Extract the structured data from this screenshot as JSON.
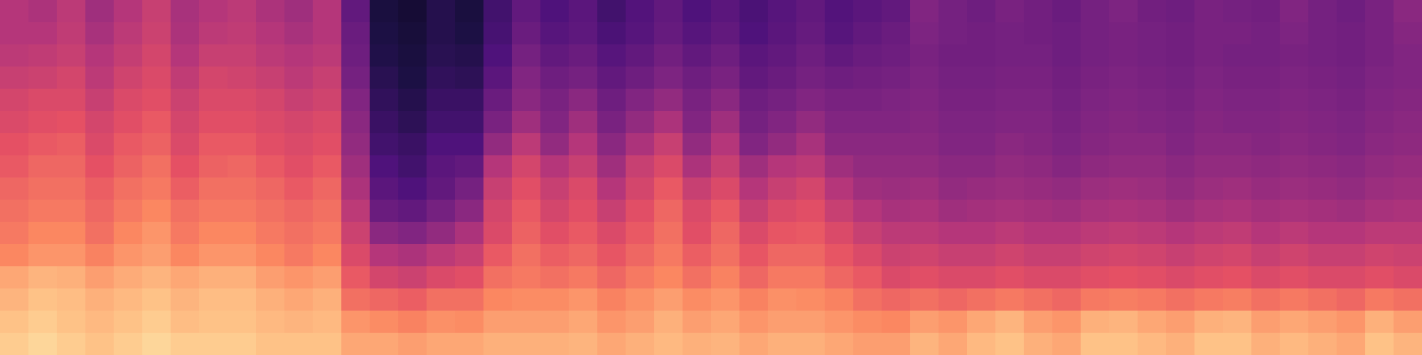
{
  "chart_data": {
    "type": "heatmap",
    "tick_labels": false,
    "color": "magma",
    "xlim": [
      0,
      50
    ],
    "ylim": [
      0,
      16
    ],
    "zlim": [
      0,
      1
    ],
    "cells": [
      [
        0.5,
        0.48,
        0.52,
        0.45,
        0.5,
        0.55,
        0.47,
        0.5,
        0.52,
        0.48,
        0.45,
        0.5,
        0.3,
        0.12,
        0.1,
        0.15,
        0.12,
        0.22,
        0.3,
        0.25,
        0.28,
        0.22,
        0.26,
        0.3,
        0.25,
        0.28,
        0.24,
        0.27,
        0.3,
        0.26,
        0.28,
        0.3,
        0.38,
        0.35,
        0.33,
        0.36,
        0.34,
        0.32,
        0.35,
        0.37,
        0.34,
        0.33,
        0.36,
        0.35,
        0.34,
        0.38,
        0.35,
        0.33,
        0.36,
        0.4
      ],
      [
        0.5,
        0.5,
        0.53,
        0.47,
        0.52,
        0.56,
        0.48,
        0.52,
        0.53,
        0.5,
        0.47,
        0.5,
        0.32,
        0.13,
        0.11,
        0.15,
        0.13,
        0.23,
        0.32,
        0.27,
        0.29,
        0.24,
        0.27,
        0.31,
        0.27,
        0.3,
        0.25,
        0.28,
        0.31,
        0.27,
        0.3,
        0.32,
        0.37,
        0.35,
        0.34,
        0.35,
        0.34,
        0.33,
        0.35,
        0.36,
        0.35,
        0.34,
        0.36,
        0.36,
        0.35,
        0.37,
        0.35,
        0.34,
        0.36,
        0.39
      ],
      [
        0.52,
        0.53,
        0.55,
        0.5,
        0.54,
        0.58,
        0.5,
        0.55,
        0.55,
        0.52,
        0.5,
        0.52,
        0.33,
        0.14,
        0.12,
        0.16,
        0.15,
        0.25,
        0.35,
        0.3,
        0.32,
        0.27,
        0.3,
        0.34,
        0.3,
        0.33,
        0.28,
        0.3,
        0.33,
        0.3,
        0.32,
        0.33,
        0.36,
        0.34,
        0.34,
        0.35,
        0.35,
        0.33,
        0.35,
        0.36,
        0.35,
        0.34,
        0.36,
        0.35,
        0.35,
        0.36,
        0.35,
        0.34,
        0.36,
        0.38
      ],
      [
        0.55,
        0.56,
        0.58,
        0.52,
        0.57,
        0.6,
        0.53,
        0.58,
        0.57,
        0.55,
        0.52,
        0.55,
        0.35,
        0.16,
        0.13,
        0.18,
        0.17,
        0.28,
        0.38,
        0.33,
        0.35,
        0.3,
        0.33,
        0.37,
        0.33,
        0.36,
        0.3,
        0.32,
        0.35,
        0.33,
        0.34,
        0.35,
        0.37,
        0.35,
        0.35,
        0.36,
        0.36,
        0.34,
        0.36,
        0.37,
        0.36,
        0.35,
        0.37,
        0.36,
        0.36,
        0.37,
        0.36,
        0.35,
        0.37,
        0.38
      ],
      [
        0.58,
        0.6,
        0.6,
        0.55,
        0.6,
        0.62,
        0.56,
        0.6,
        0.6,
        0.58,
        0.55,
        0.57,
        0.38,
        0.18,
        0.15,
        0.2,
        0.2,
        0.32,
        0.4,
        0.36,
        0.4,
        0.33,
        0.38,
        0.42,
        0.36,
        0.4,
        0.33,
        0.35,
        0.38,
        0.36,
        0.36,
        0.37,
        0.38,
        0.36,
        0.36,
        0.37,
        0.37,
        0.35,
        0.37,
        0.38,
        0.37,
        0.36,
        0.38,
        0.37,
        0.37,
        0.38,
        0.37,
        0.36,
        0.38,
        0.39
      ],
      [
        0.6,
        0.62,
        0.63,
        0.58,
        0.62,
        0.65,
        0.58,
        0.62,
        0.62,
        0.6,
        0.58,
        0.6,
        0.4,
        0.2,
        0.17,
        0.22,
        0.22,
        0.36,
        0.45,
        0.38,
        0.45,
        0.36,
        0.42,
        0.48,
        0.38,
        0.45,
        0.35,
        0.38,
        0.42,
        0.38,
        0.38,
        0.38,
        0.39,
        0.37,
        0.37,
        0.38,
        0.38,
        0.36,
        0.38,
        0.39,
        0.38,
        0.37,
        0.39,
        0.38,
        0.38,
        0.39,
        0.38,
        0.37,
        0.39,
        0.4
      ],
      [
        0.63,
        0.65,
        0.66,
        0.6,
        0.65,
        0.67,
        0.6,
        0.65,
        0.65,
        0.62,
        0.6,
        0.62,
        0.42,
        0.22,
        0.2,
        0.25,
        0.25,
        0.42,
        0.52,
        0.42,
        0.5,
        0.4,
        0.48,
        0.55,
        0.42,
        0.5,
        0.38,
        0.42,
        0.47,
        0.4,
        0.4,
        0.4,
        0.4,
        0.38,
        0.38,
        0.4,
        0.39,
        0.37,
        0.39,
        0.4,
        0.4,
        0.38,
        0.4,
        0.4,
        0.39,
        0.4,
        0.39,
        0.38,
        0.4,
        0.41
      ],
      [
        0.65,
        0.68,
        0.68,
        0.63,
        0.67,
        0.7,
        0.63,
        0.67,
        0.68,
        0.65,
        0.62,
        0.65,
        0.45,
        0.25,
        0.22,
        0.28,
        0.3,
        0.5,
        0.58,
        0.5,
        0.55,
        0.45,
        0.55,
        0.6,
        0.48,
        0.55,
        0.45,
        0.5,
        0.52,
        0.45,
        0.42,
        0.42,
        0.42,
        0.4,
        0.4,
        0.42,
        0.41,
        0.39,
        0.41,
        0.42,
        0.42,
        0.4,
        0.42,
        0.42,
        0.41,
        0.42,
        0.41,
        0.4,
        0.42,
        0.43
      ],
      [
        0.68,
        0.7,
        0.7,
        0.66,
        0.7,
        0.72,
        0.66,
        0.7,
        0.7,
        0.68,
        0.65,
        0.68,
        0.48,
        0.28,
        0.25,
        0.3,
        0.35,
        0.55,
        0.62,
        0.55,
        0.6,
        0.5,
        0.58,
        0.65,
        0.55,
        0.6,
        0.5,
        0.55,
        0.58,
        0.5,
        0.45,
        0.44,
        0.45,
        0.42,
        0.43,
        0.44,
        0.43,
        0.42,
        0.44,
        0.45,
        0.44,
        0.42,
        0.44,
        0.45,
        0.43,
        0.44,
        0.43,
        0.42,
        0.44,
        0.45
      ],
      [
        0.7,
        0.72,
        0.72,
        0.68,
        0.72,
        0.75,
        0.7,
        0.72,
        0.72,
        0.7,
        0.68,
        0.7,
        0.52,
        0.32,
        0.3,
        0.35,
        0.4,
        0.58,
        0.65,
        0.58,
        0.62,
        0.55,
        0.62,
        0.68,
        0.6,
        0.65,
        0.55,
        0.6,
        0.62,
        0.55,
        0.5,
        0.47,
        0.48,
        0.45,
        0.46,
        0.47,
        0.46,
        0.45,
        0.47,
        0.48,
        0.47,
        0.45,
        0.47,
        0.48,
        0.46,
        0.47,
        0.46,
        0.45,
        0.47,
        0.48
      ],
      [
        0.72,
        0.75,
        0.75,
        0.7,
        0.75,
        0.78,
        0.72,
        0.75,
        0.75,
        0.72,
        0.7,
        0.72,
        0.56,
        0.4,
        0.38,
        0.42,
        0.48,
        0.6,
        0.67,
        0.62,
        0.65,
        0.6,
        0.65,
        0.7,
        0.62,
        0.68,
        0.6,
        0.64,
        0.65,
        0.6,
        0.55,
        0.52,
        0.52,
        0.5,
        0.5,
        0.52,
        0.5,
        0.5,
        0.52,
        0.53,
        0.52,
        0.5,
        0.52,
        0.53,
        0.5,
        0.52,
        0.5,
        0.5,
        0.52,
        0.52
      ],
      [
        0.75,
        0.78,
        0.78,
        0.74,
        0.78,
        0.8,
        0.75,
        0.78,
        0.78,
        0.75,
        0.72,
        0.75,
        0.6,
        0.5,
        0.48,
        0.52,
        0.55,
        0.65,
        0.7,
        0.66,
        0.68,
        0.64,
        0.68,
        0.72,
        0.66,
        0.7,
        0.64,
        0.68,
        0.68,
        0.64,
        0.6,
        0.56,
        0.57,
        0.55,
        0.55,
        0.57,
        0.55,
        0.55,
        0.57,
        0.58,
        0.57,
        0.55,
        0.57,
        0.58,
        0.55,
        0.57,
        0.55,
        0.55,
        0.57,
        0.56
      ],
      [
        0.82,
        0.85,
        0.84,
        0.8,
        0.83,
        0.85,
        0.82,
        0.84,
        0.84,
        0.8,
        0.78,
        0.8,
        0.65,
        0.58,
        0.56,
        0.6,
        0.62,
        0.7,
        0.72,
        0.7,
        0.72,
        0.68,
        0.72,
        0.75,
        0.7,
        0.74,
        0.68,
        0.72,
        0.72,
        0.68,
        0.65,
        0.6,
        0.62,
        0.6,
        0.6,
        0.62,
        0.6,
        0.6,
        0.62,
        0.63,
        0.62,
        0.6,
        0.62,
        0.63,
        0.6,
        0.62,
        0.6,
        0.6,
        0.62,
        0.6
      ],
      [
        0.85,
        0.88,
        0.87,
        0.84,
        0.86,
        0.88,
        0.85,
        0.87,
        0.87,
        0.84,
        0.82,
        0.84,
        0.7,
        0.68,
        0.66,
        0.7,
        0.7,
        0.75,
        0.76,
        0.76,
        0.78,
        0.74,
        0.77,
        0.8,
        0.76,
        0.78,
        0.74,
        0.77,
        0.76,
        0.74,
        0.7,
        0.68,
        0.7,
        0.68,
        0.7,
        0.72,
        0.7,
        0.68,
        0.72,
        0.73,
        0.72,
        0.7,
        0.72,
        0.73,
        0.7,
        0.72,
        0.7,
        0.68,
        0.72,
        0.7
      ],
      [
        0.88,
        0.9,
        0.88,
        0.86,
        0.88,
        0.9,
        0.87,
        0.88,
        0.88,
        0.86,
        0.85,
        0.86,
        0.78,
        0.76,
        0.74,
        0.77,
        0.76,
        0.8,
        0.8,
        0.8,
        0.82,
        0.78,
        0.8,
        0.84,
        0.8,
        0.82,
        0.78,
        0.8,
        0.8,
        0.78,
        0.76,
        0.75,
        0.8,
        0.78,
        0.82,
        0.85,
        0.8,
        0.78,
        0.84,
        0.85,
        0.82,
        0.8,
        0.84,
        0.85,
        0.8,
        0.82,
        0.8,
        0.78,
        0.84,
        0.8
      ],
      [
        0.9,
        0.92,
        0.9,
        0.88,
        0.9,
        0.92,
        0.9,
        0.9,
        0.9,
        0.88,
        0.88,
        0.88,
        0.82,
        0.82,
        0.8,
        0.82,
        0.82,
        0.84,
        0.84,
        0.84,
        0.85,
        0.82,
        0.84,
        0.86,
        0.84,
        0.85,
        0.82,
        0.84,
        0.84,
        0.82,
        0.8,
        0.8,
        0.85,
        0.82,
        0.86,
        0.88,
        0.84,
        0.82,
        0.88,
        0.88,
        0.86,
        0.84,
        0.88,
        0.88,
        0.84,
        0.86,
        0.84,
        0.82,
        0.88,
        0.85
      ]
    ]
  }
}
